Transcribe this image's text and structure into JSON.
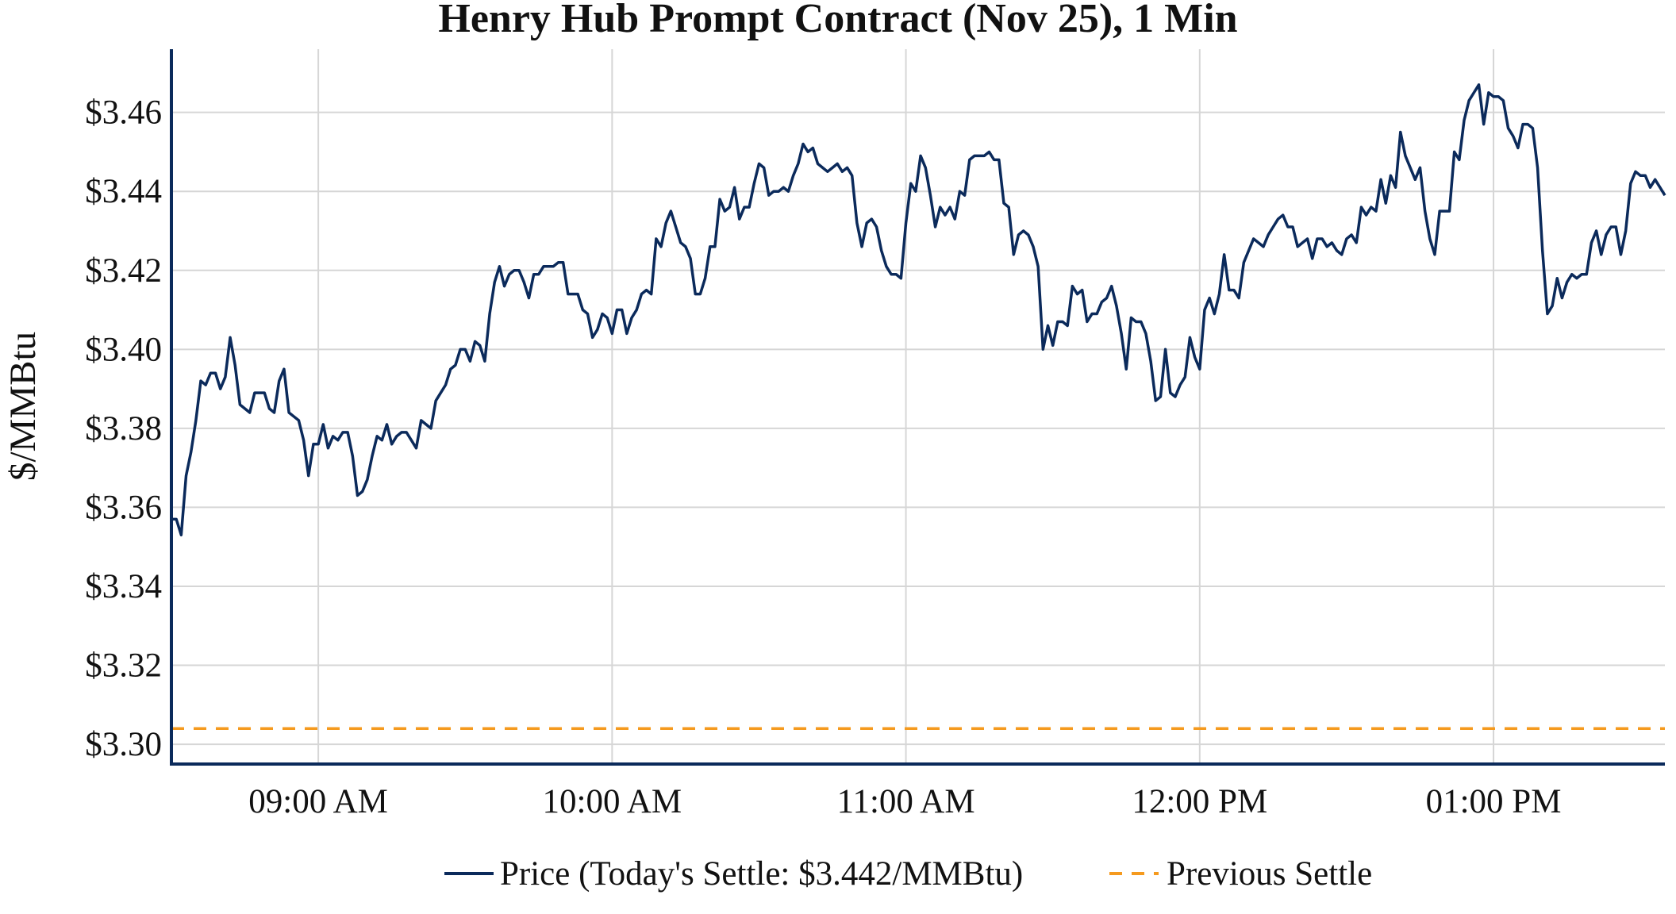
{
  "chart_data": {
    "type": "line",
    "title": "Henry Hub Prompt Contract (Nov 25), 1 Min",
    "xlabel": "",
    "ylabel": "$/MMBtu",
    "ylim": [
      3.295,
      3.476
    ],
    "xlim": [
      "08:30",
      "13:35"
    ],
    "y_ticks": [
      3.3,
      3.32,
      3.34,
      3.36,
      3.38,
      3.4,
      3.42,
      3.44,
      3.46
    ],
    "y_tick_labels": [
      "$3.30",
      "$3.32",
      "$3.34",
      "$3.36",
      "$3.38",
      "$3.40",
      "$3.42",
      "$3.44",
      "$3.46"
    ],
    "x_ticks": [
      "09:00",
      "10:00",
      "11:00",
      "12:00",
      "13:00"
    ],
    "x_tick_labels": [
      "09:00 AM",
      "10:00 AM",
      "11:00 AM",
      "12:00 PM",
      "01:00 PM"
    ],
    "grid": true,
    "legend_position": "bottom-center",
    "series": [
      {
        "name": "Price (Today's Settle: $3.442/MMBtu)",
        "color": "#0b2a5b",
        "style": "solid",
        "x": [
          "08:30",
          "08:31",
          "08:32",
          "08:33",
          "08:34",
          "08:35",
          "08:36",
          "08:37",
          "08:38",
          "08:39",
          "08:40",
          "08:41",
          "08:42",
          "08:43",
          "08:44",
          "08:45",
          "08:46",
          "08:47",
          "08:48",
          "08:49",
          "08:50",
          "08:51",
          "08:52",
          "08:53",
          "08:54",
          "08:55",
          "08:56",
          "08:57",
          "08:58",
          "08:59",
          "09:00",
          "09:01",
          "09:02",
          "09:03",
          "09:04",
          "09:05",
          "09:06",
          "09:07",
          "09:08",
          "09:09",
          "09:10",
          "09:11",
          "09:12",
          "09:13",
          "09:14",
          "09:15",
          "09:16",
          "09:17",
          "09:18",
          "09:19",
          "09:20",
          "09:21",
          "09:22",
          "09:23",
          "09:24",
          "09:25",
          "09:26",
          "09:27",
          "09:28",
          "09:29",
          "09:30",
          "09:31",
          "09:32",
          "09:33",
          "09:34",
          "09:35",
          "09:36",
          "09:37",
          "09:38",
          "09:39",
          "09:40",
          "09:41",
          "09:42",
          "09:43",
          "09:44",
          "09:45",
          "09:46",
          "09:47",
          "09:48",
          "09:49",
          "09:50",
          "09:51",
          "09:52",
          "09:53",
          "09:54",
          "09:55",
          "09:56",
          "09:57",
          "09:58",
          "09:59",
          "10:00",
          "10:01",
          "10:02",
          "10:03",
          "10:04",
          "10:05",
          "10:06",
          "10:07",
          "10:08",
          "10:09",
          "10:10",
          "10:11",
          "10:12",
          "10:13",
          "10:14",
          "10:15",
          "10:16",
          "10:17",
          "10:18",
          "10:19",
          "10:20",
          "10:21",
          "10:22",
          "10:23",
          "10:24",
          "10:25",
          "10:26",
          "10:27",
          "10:28",
          "10:29",
          "10:30",
          "10:31",
          "10:32",
          "10:33",
          "10:34",
          "10:35",
          "10:36",
          "10:37",
          "10:38",
          "10:39",
          "10:40",
          "10:41",
          "10:42",
          "10:43",
          "10:44",
          "10:45",
          "10:46",
          "10:47",
          "10:48",
          "10:49",
          "10:50",
          "10:51",
          "10:52",
          "10:53",
          "10:54",
          "10:55",
          "10:56",
          "10:57",
          "10:58",
          "10:59",
          "11:00",
          "11:01",
          "11:02",
          "11:03",
          "11:04",
          "11:05",
          "11:06",
          "11:07",
          "11:08",
          "11:09",
          "11:10",
          "11:11",
          "11:12",
          "11:13",
          "11:14",
          "11:15",
          "11:16",
          "11:17",
          "11:18",
          "11:19",
          "11:20",
          "11:21",
          "11:22",
          "11:23",
          "11:24",
          "11:25",
          "11:26",
          "11:27",
          "11:28",
          "11:29",
          "11:30",
          "11:31",
          "11:32",
          "11:33",
          "11:34",
          "11:35",
          "11:36",
          "11:37",
          "11:38",
          "11:39",
          "11:40",
          "11:41",
          "11:42",
          "11:43",
          "11:44",
          "11:45",
          "11:46",
          "11:47",
          "11:48",
          "11:49",
          "11:50",
          "11:51",
          "11:52",
          "11:53",
          "11:54",
          "11:55",
          "11:56",
          "11:57",
          "11:58",
          "11:59",
          "12:00",
          "12:01",
          "12:02",
          "12:03",
          "12:04",
          "12:05",
          "12:06",
          "12:07",
          "12:08",
          "12:09",
          "12:10",
          "12:11",
          "12:12",
          "12:13",
          "12:14",
          "12:15",
          "12:16",
          "12:17",
          "12:18",
          "12:19",
          "12:20",
          "12:21",
          "12:22",
          "12:23",
          "12:24",
          "12:25",
          "12:26",
          "12:27",
          "12:28",
          "12:29",
          "12:30",
          "12:31",
          "12:32",
          "12:33",
          "12:34",
          "12:35",
          "12:36",
          "12:37",
          "12:38",
          "12:39",
          "12:40",
          "12:41",
          "12:42",
          "12:43",
          "12:44",
          "12:45",
          "12:46",
          "12:47",
          "12:48",
          "12:49",
          "12:50",
          "12:51",
          "12:52",
          "12:53",
          "12:54",
          "12:55",
          "12:56",
          "12:57",
          "12:58",
          "12:59",
          "13:00",
          "13:01",
          "13:02",
          "13:03",
          "13:04",
          "13:05",
          "13:06",
          "13:07",
          "13:08",
          "13:09",
          "13:10",
          "13:11",
          "13:12",
          "13:13",
          "13:14",
          "13:15",
          "13:16",
          "13:17",
          "13:18",
          "13:19",
          "13:20",
          "13:21",
          "13:22",
          "13:23",
          "13:24",
          "13:25",
          "13:26",
          "13:27",
          "13:28",
          "13:29",
          "13:30",
          "13:31",
          "13:32",
          "13:33",
          "13:34",
          "13:35"
        ],
        "y": [
          3.357,
          3.357,
          3.353,
          3.368,
          3.374,
          3.382,
          3.392,
          3.391,
          3.394,
          3.394,
          3.39,
          3.393,
          3.403,
          3.396,
          3.386,
          3.385,
          3.384,
          3.389,
          3.389,
          3.389,
          3.385,
          3.384,
          3.392,
          3.395,
          3.384,
          3.383,
          3.382,
          3.377,
          3.368,
          3.376,
          3.376,
          3.381,
          3.375,
          3.378,
          3.377,
          3.379,
          3.379,
          3.373,
          3.363,
          3.364,
          3.367,
          3.373,
          3.378,
          3.377,
          3.381,
          3.376,
          3.378,
          3.379,
          3.379,
          3.377,
          3.375,
          3.382,
          3.381,
          3.38,
          3.387,
          3.389,
          3.391,
          3.395,
          3.396,
          3.4,
          3.4,
          3.397,
          3.402,
          3.401,
          3.397,
          3.409,
          3.417,
          3.421,
          3.416,
          3.419,
          3.42,
          3.42,
          3.417,
          3.413,
          3.419,
          3.419,
          3.421,
          3.421,
          3.421,
          3.422,
          3.422,
          3.414,
          3.414,
          3.414,
          3.41,
          3.409,
          3.403,
          3.405,
          3.409,
          3.408,
          3.404,
          3.41,
          3.41,
          3.404,
          3.408,
          3.41,
          3.414,
          3.415,
          3.414,
          3.428,
          3.426,
          3.432,
          3.435,
          3.431,
          3.427,
          3.426,
          3.423,
          3.414,
          3.414,
          3.418,
          3.426,
          3.426,
          3.438,
          3.435,
          3.436,
          3.441,
          3.433,
          3.436,
          3.436,
          3.442,
          3.447,
          3.446,
          3.439,
          3.44,
          3.44,
          3.441,
          3.44,
          3.444,
          3.447,
          3.452,
          3.45,
          3.451,
          3.447,
          3.446,
          3.445,
          3.446,
          3.447,
          3.445,
          3.446,
          3.444,
          3.432,
          3.426,
          3.432,
          3.433,
          3.431,
          3.425,
          3.421,
          3.419,
          3.419,
          3.418,
          3.432,
          3.442,
          3.44,
          3.449,
          3.446,
          3.439,
          3.431,
          3.436,
          3.434,
          3.436,
          3.433,
          3.44,
          3.439,
          3.448,
          3.449,
          3.449,
          3.449,
          3.45,
          3.448,
          3.448,
          3.437,
          3.436,
          3.424,
          3.429,
          3.43,
          3.429,
          3.426,
          3.421,
          3.4,
          3.406,
          3.401,
          3.407,
          3.407,
          3.406,
          3.416,
          3.414,
          3.415,
          3.407,
          3.409,
          3.409,
          3.412,
          3.413,
          3.416,
          3.411,
          3.404,
          3.395,
          3.408,
          3.407,
          3.407,
          3.404,
          3.397,
          3.387,
          3.388,
          3.4,
          3.389,
          3.388,
          3.391,
          3.393,
          3.403,
          3.398,
          3.395,
          3.41,
          3.413,
          3.409,
          3.414,
          3.424,
          3.415,
          3.415,
          3.413,
          3.422,
          3.425,
          3.428,
          3.427,
          3.426,
          3.429,
          3.431,
          3.433,
          3.434,
          3.431,
          3.431,
          3.426,
          3.427,
          3.428,
          3.423,
          3.428,
          3.428,
          3.426,
          3.427,
          3.425,
          3.424,
          3.428,
          3.429,
          3.427,
          3.436,
          3.434,
          3.436,
          3.435,
          3.443,
          3.437,
          3.444,
          3.441,
          3.455,
          3.449,
          3.446,
          3.443,
          3.446,
          3.435,
          3.428,
          3.424,
          3.435,
          3.435,
          3.435,
          3.45,
          3.448,
          3.458,
          3.463,
          3.465,
          3.467,
          3.457,
          3.465,
          3.464,
          3.464,
          3.463,
          3.456,
          3.454,
          3.451,
          3.457,
          3.457,
          3.456,
          3.446,
          3.425,
          3.409,
          3.411,
          3.418,
          3.413,
          3.417,
          3.419,
          3.418,
          3.419,
          3.419,
          3.427,
          3.43,
          3.424,
          3.429,
          3.431,
          3.431,
          3.424,
          3.43,
          3.442,
          3.445,
          3.444,
          3.444,
          3.441,
          3.443,
          3.441,
          3.439
        ]
      },
      {
        "name": "Previous Settle",
        "color": "#f59a1e",
        "style": "dashed",
        "x": [
          "08:30",
          "13:35"
        ],
        "y": [
          3.304,
          3.304
        ]
      }
    ]
  }
}
